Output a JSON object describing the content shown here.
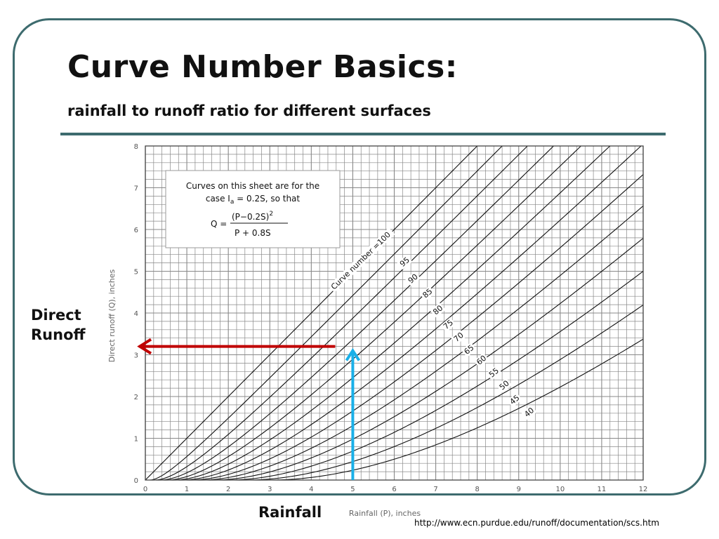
{
  "slide": {
    "title": "Curve Number Basics:",
    "subtitle": "rainfall to runoff ratio for different surfaces",
    "rainfall_label": "Rainfall",
    "direct_label_line1": "Direct",
    "direct_label_line2": "Runoff",
    "source": "http://www.ecn.purdue.edu/runoff/documentation/scs.htm"
  },
  "colors": {
    "frame": "#3d6b6e",
    "red_arrow": "#c00000",
    "blue_arrow": "#1ab0e8",
    "grid": "#888888",
    "curve": "#111111"
  },
  "chart_data": {
    "type": "line",
    "xlabel": "Rainfall (P), inches",
    "ylabel": "Direct runoff (Q), inches",
    "xlim": [
      0,
      12
    ],
    "ylim": [
      0,
      8
    ],
    "xticks": [
      "0",
      "1",
      "2",
      "3",
      "4",
      "5",
      "6",
      "7",
      "8",
      "9",
      "10",
      "11",
      "12"
    ],
    "yticks": [
      "0",
      "1",
      "2",
      "3",
      "4",
      "5",
      "6",
      "7",
      "8"
    ],
    "grid": true,
    "note": {
      "line1": "Curves on this sheet are for the",
      "line2_a": "case I",
      "line2_sub": "a",
      "line2_b": " = 0.2S, so that",
      "eq_lhs": "Q =",
      "eq_num": "(P−0.2S)",
      "eq_exp": "2",
      "eq_den": "P + 0.8S"
    },
    "curve_numbers": [
      100,
      95,
      90,
      85,
      80,
      75,
      70,
      65,
      60,
      55,
      50,
      45,
      40
    ],
    "curve_labels": [
      "Curve number =100",
      "95",
      "90",
      "85",
      "80",
      "75",
      "70",
      "65",
      "60",
      "55",
      "50",
      "45",
      "40"
    ],
    "arrows": {
      "rainfall_P": 5,
      "runoff_Q": 3.2
    }
  }
}
